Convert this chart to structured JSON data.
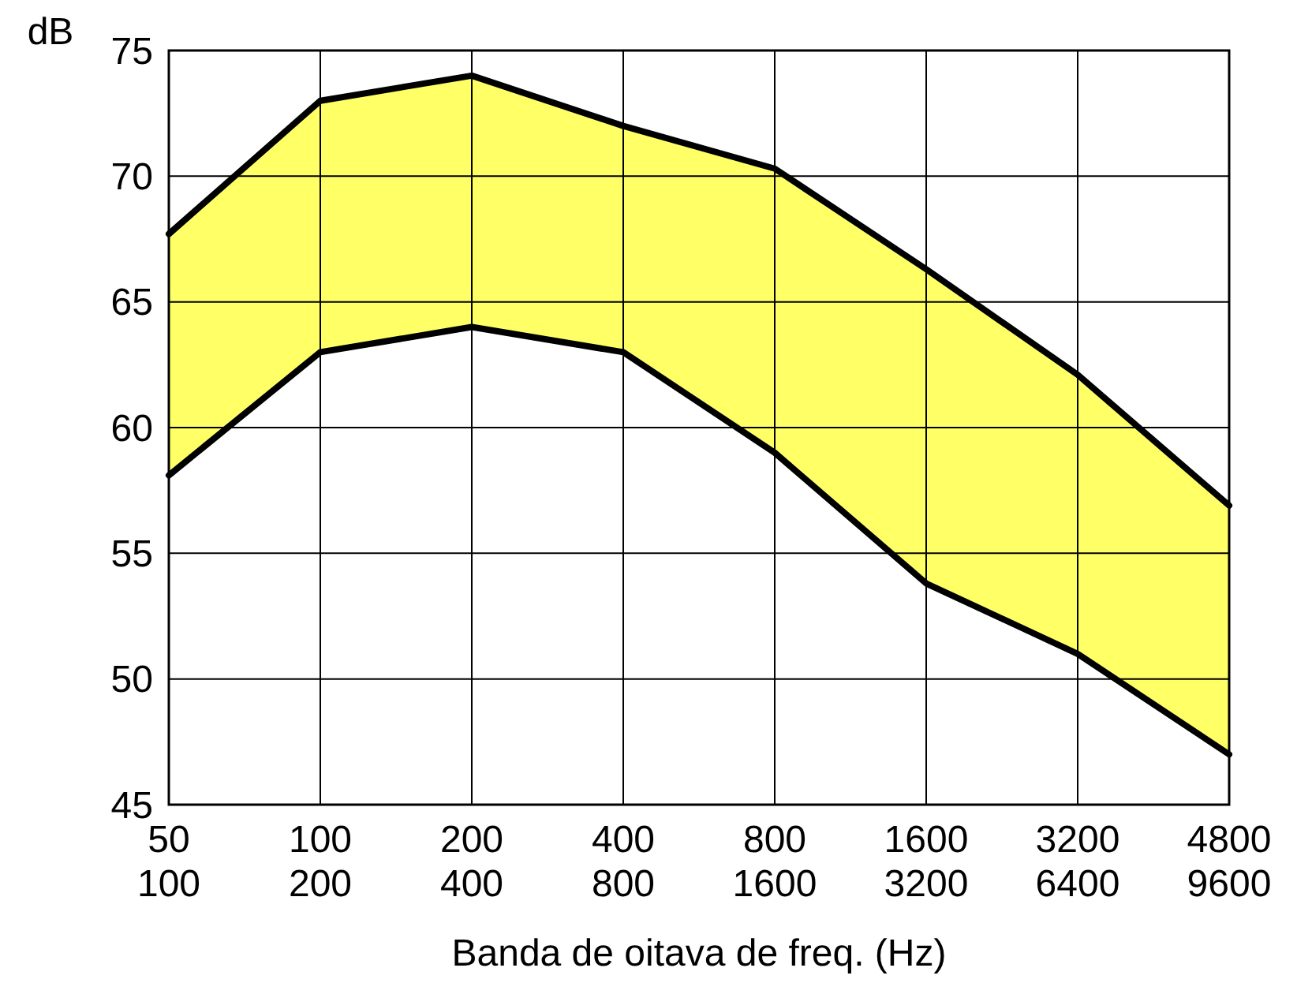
{
  "chart_data": {
    "type": "line",
    "xlabel": "Banda de oitava de freq. (Hz)",
    "ylabel": "dB",
    "categories": [
      "50\n100",
      "100\n200",
      "200\n400",
      "400\n800",
      "800\n1600",
      "1600\n3200",
      "3200\n6400",
      "4800\n9600"
    ],
    "series": [
      {
        "color": "#000000",
        "values": [
          67.7,
          73,
          74,
          72,
          70.3,
          66.3,
          62.1,
          56.9
        ],
        "lower": [
          58.1,
          63,
          64,
          63,
          59,
          53.8,
          51,
          47
        ],
        "upper": [
          67.7,
          73,
          74,
          72,
          70.3,
          66.3,
          62.1,
          56.9
        ]
      },
      {
        "color": "#000000",
        "values": [
          58.1,
          63,
          64,
          63,
          59,
          53.8,
          51,
          47
        ]
      }
    ],
    "ylim": [
      45,
      75
    ],
    "yticks": [
      45,
      50,
      55,
      60,
      65,
      70,
      75
    ],
    "grid": true,
    "line_style": "solid"
  }
}
